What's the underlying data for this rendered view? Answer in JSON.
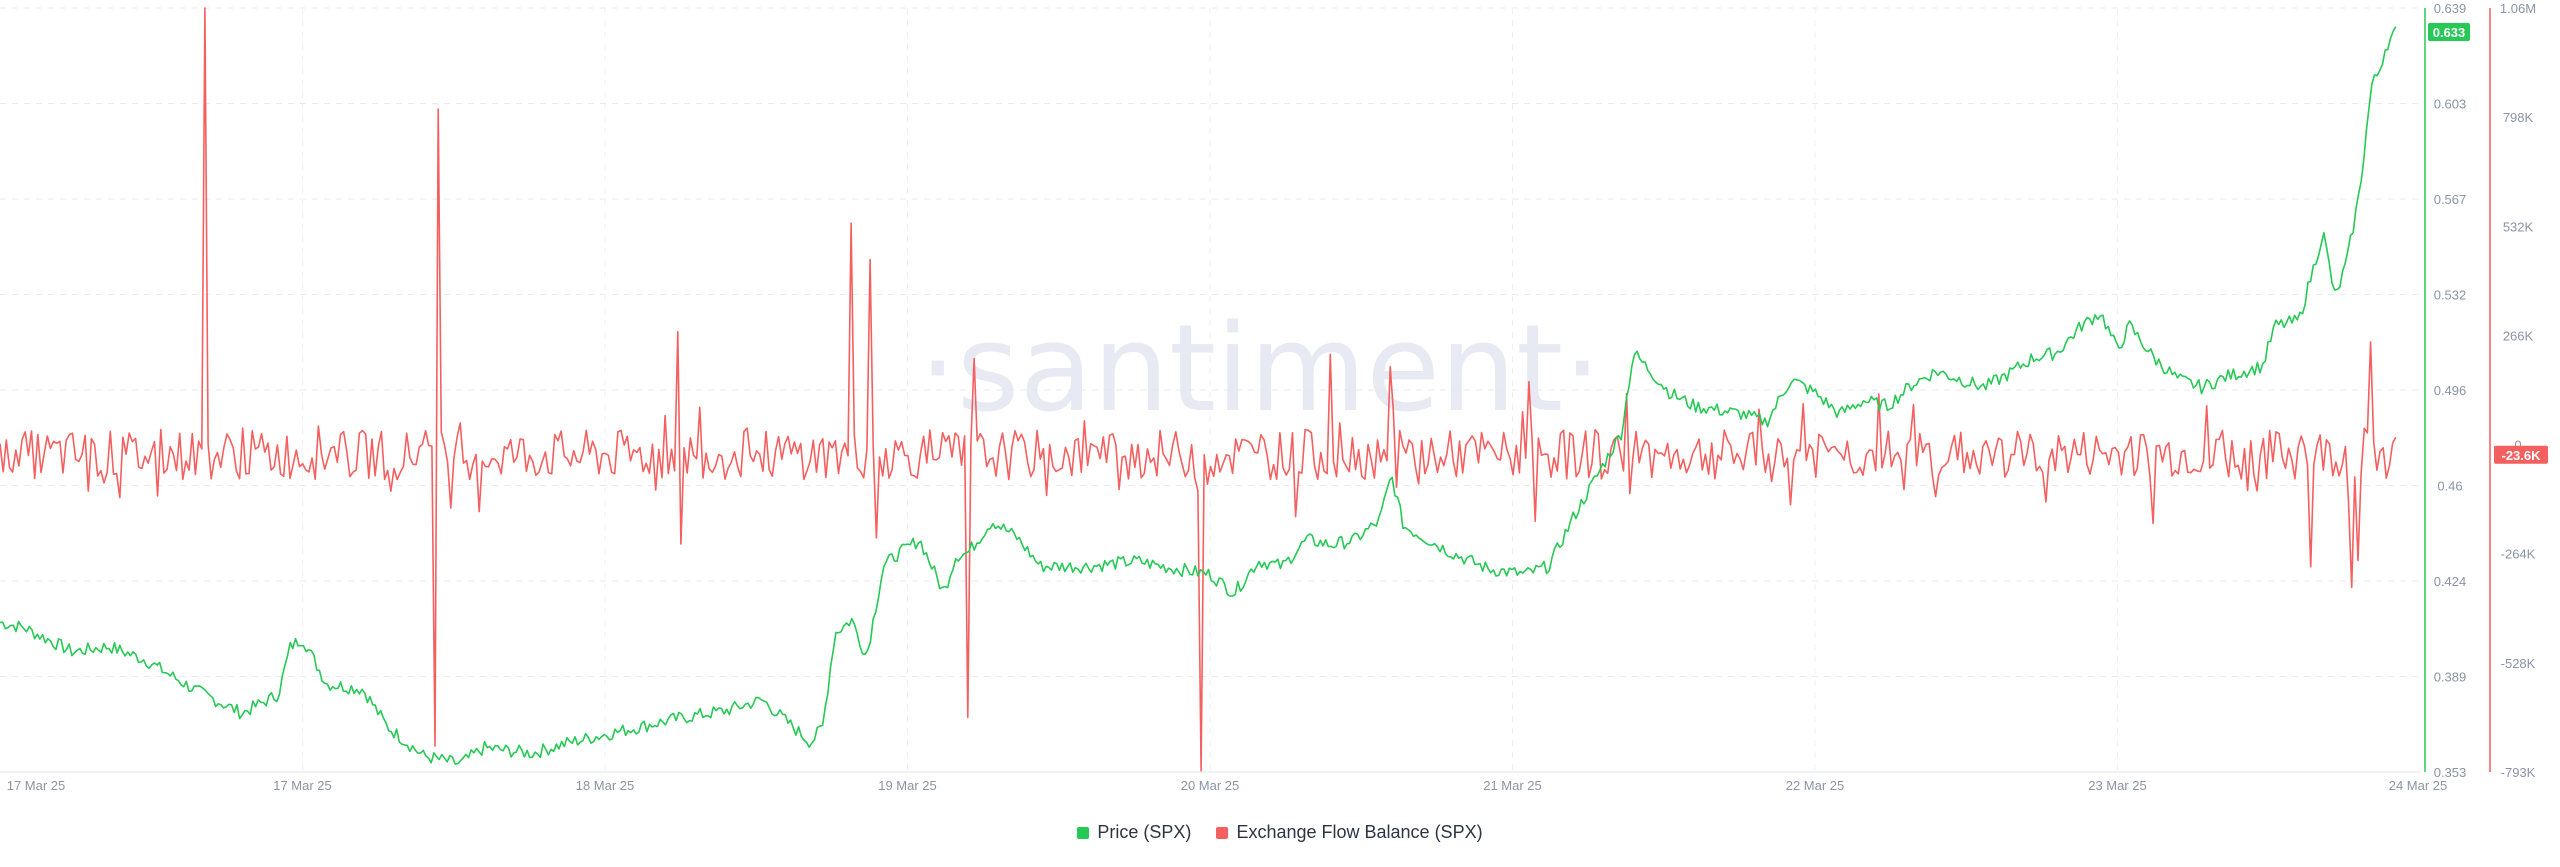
{
  "watermark": "·santiment·",
  "chart_data": {
    "type": "line",
    "x_tick_labels": [
      "17 Mar 25",
      "17 Mar 25",
      "18 Mar 25",
      "19 Mar 25",
      "20 Mar 25",
      "21 Mar 25",
      "22 Mar 25",
      "23 Mar 25",
      "24 Mar 25"
    ],
    "y_left": {
      "ticks": [
        "0.639",
        "0.603",
        "0.567",
        "0.532",
        "0.496",
        "0.46",
        "0.424",
        "0.389",
        "0.353"
      ],
      "range": [
        0.353,
        0.639
      ],
      "last_value_label": "0.633"
    },
    "y_right": {
      "ticks": [
        "1.06M",
        "798K",
        "532K",
        "266K",
        "0",
        "-264K",
        "-528K",
        "-793K"
      ],
      "range": [
        -793000,
        1060000
      ],
      "last_value_label": "-23.6K"
    },
    "grid": true,
    "legend_position": "bottom-center",
    "series": [
      {
        "name": "Price (SPX)",
        "color": "#26c955",
        "axis": "left",
        "anchors": [
          [
            0,
            0.409
          ],
          [
            0.01,
            0.407
          ],
          [
            0.03,
            0.398
          ],
          [
            0.045,
            0.4
          ],
          [
            0.06,
            0.395
          ],
          [
            0.08,
            0.384
          ],
          [
            0.1,
            0.375
          ],
          [
            0.115,
            0.382
          ],
          [
            0.12,
            0.4
          ],
          [
            0.125,
            0.403
          ],
          [
            0.135,
            0.386
          ],
          [
            0.15,
            0.384
          ],
          [
            0.16,
            0.37
          ],
          [
            0.175,
            0.359
          ],
          [
            0.19,
            0.356
          ],
          [
            0.2,
            0.362
          ],
          [
            0.22,
            0.36
          ],
          [
            0.235,
            0.364
          ],
          [
            0.25,
            0.367
          ],
          [
            0.27,
            0.371
          ],
          [
            0.28,
            0.373
          ],
          [
            0.3,
            0.376
          ],
          [
            0.315,
            0.38
          ],
          [
            0.325,
            0.372
          ],
          [
            0.335,
            0.364
          ],
          [
            0.34,
            0.37
          ],
          [
            0.345,
            0.405
          ],
          [
            0.352,
            0.41
          ],
          [
            0.358,
            0.396
          ],
          [
            0.365,
            0.43
          ],
          [
            0.37,
            0.434
          ],
          [
            0.38,
            0.44
          ],
          [
            0.39,
            0.42
          ],
          [
            0.395,
            0.434
          ],
          [
            0.4,
            0.435
          ],
          [
            0.41,
            0.447
          ],
          [
            0.42,
            0.441
          ],
          [
            0.43,
            0.43
          ],
          [
            0.45,
            0.43
          ],
          [
            0.47,
            0.432
          ],
          [
            0.48,
            0.43
          ],
          [
            0.5,
            0.427
          ],
          [
            0.51,
            0.42
          ],
          [
            0.52,
            0.432
          ],
          [
            0.53,
            0.43
          ],
          [
            0.54,
            0.44
          ],
          [
            0.55,
            0.438
          ],
          [
            0.56,
            0.44
          ],
          [
            0.57,
            0.447
          ],
          [
            0.575,
            0.464
          ],
          [
            0.58,
            0.445
          ],
          [
            0.59,
            0.44
          ],
          [
            0.6,
            0.435
          ],
          [
            0.615,
            0.429
          ],
          [
            0.63,
            0.427
          ],
          [
            0.64,
            0.43
          ],
          [
            0.65,
            0.448
          ],
          [
            0.66,
            0.464
          ],
          [
            0.67,
            0.48
          ],
          [
            0.675,
            0.51
          ],
          [
            0.68,
            0.505
          ],
          [
            0.69,
            0.495
          ],
          [
            0.7,
            0.49
          ],
          [
            0.72,
            0.487
          ],
          [
            0.73,
            0.484
          ],
          [
            0.74,
            0.5
          ],
          [
            0.75,
            0.495
          ],
          [
            0.76,
            0.487
          ],
          [
            0.77,
            0.492
          ],
          [
            0.78,
            0.49
          ],
          [
            0.79,
            0.498
          ],
          [
            0.8,
            0.503
          ],
          [
            0.81,
            0.5
          ],
          [
            0.82,
            0.497
          ],
          [
            0.83,
            0.502
          ],
          [
            0.84,
            0.508
          ],
          [
            0.85,
            0.51
          ],
          [
            0.86,
            0.52
          ],
          [
            0.868,
            0.525
          ],
          [
            0.875,
            0.511
          ],
          [
            0.88,
            0.52
          ],
          [
            0.89,
            0.508
          ],
          [
            0.9,
            0.5
          ],
          [
            0.91,
            0.497
          ],
          [
            0.92,
            0.501
          ],
          [
            0.935,
            0.505
          ],
          [
            0.94,
            0.52
          ],
          [
            0.95,
            0.522
          ],
          [
            0.96,
            0.555
          ],
          [
            0.965,
            0.53
          ],
          [
            0.97,
            0.545
          ],
          [
            0.975,
            0.57
          ],
          [
            0.98,
            0.61
          ],
          [
            0.983,
            0.615
          ],
          [
            0.986,
            0.625
          ],
          [
            0.99,
            0.63
          ]
        ]
      },
      {
        "name": "Exchange Flow Balance (SPX)",
        "color": "#f45f5f",
        "axis": "right",
        "baseline": -23600,
        "spikes": [
          [
            0.085,
            1060000
          ],
          [
            0.181,
            815000
          ],
          [
            0.18,
            -730000
          ],
          [
            0.28,
            275000
          ],
          [
            0.282,
            -240000
          ],
          [
            0.352,
            538000
          ],
          [
            0.359,
            450000
          ],
          [
            0.362,
            -225000
          ],
          [
            0.4,
            -660000
          ],
          [
            0.402,
            210000
          ],
          [
            0.496,
            -790000
          ],
          [
            0.499,
            -95000
          ],
          [
            0.55,
            220000
          ],
          [
            0.575,
            190000
          ],
          [
            0.635,
            -185000
          ],
          [
            0.672,
            125000
          ],
          [
            0.74,
            -145000
          ],
          [
            0.745,
            100000
          ],
          [
            0.89,
            -190000
          ],
          [
            0.955,
            -295000
          ],
          [
            0.972,
            -345000
          ],
          [
            0.975,
            -280000
          ],
          [
            0.98,
            250000
          ]
        ]
      }
    ]
  },
  "legend": {
    "price_label": "Price (SPX)",
    "flow_label": "Exchange Flow Balance (SPX)",
    "price_color": "#26c955",
    "flow_color": "#f45f5f"
  }
}
